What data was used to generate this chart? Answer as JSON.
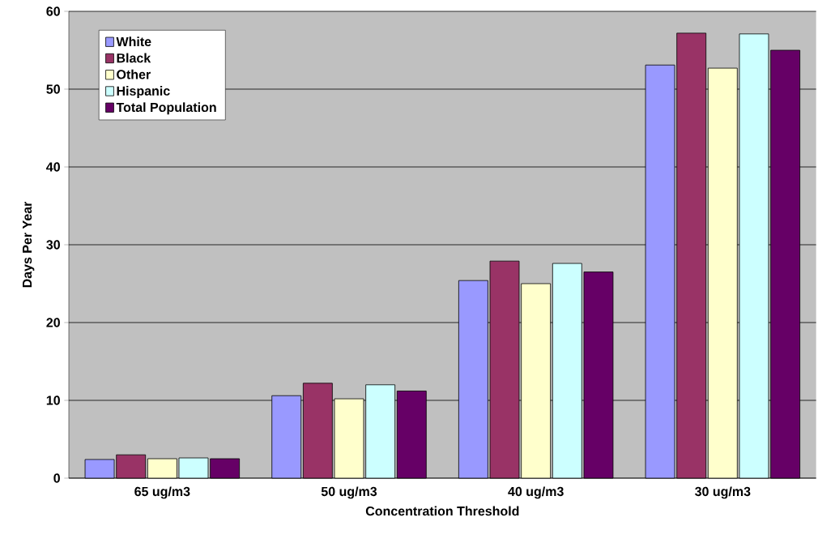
{
  "chart_data": {
    "type": "bar",
    "xlabel": "Concentration Threshold",
    "ylabel": "Days Per Year",
    "categories": [
      "65 ug/m3",
      "50 ug/m3",
      "40 ug/m3",
      "30 ug/m3"
    ],
    "series": [
      {
        "name": "White",
        "color": "#9999ff",
        "values": [
          2.4,
          10.6,
          25.4,
          53.1
        ]
      },
      {
        "name": "Black",
        "color": "#993366",
        "values": [
          3.0,
          12.2,
          27.9,
          57.2
        ]
      },
      {
        "name": "Other",
        "color": "#ffffcc",
        "values": [
          2.5,
          10.2,
          25.0,
          52.7
        ]
      },
      {
        "name": "Hispanic",
        "color": "#ccffff",
        "values": [
          2.6,
          12.0,
          27.6,
          57.1
        ]
      },
      {
        "name": "Total Population",
        "color": "#660066",
        "values": [
          2.5,
          11.2,
          26.5,
          55.0
        ]
      }
    ],
    "ylim": [
      0,
      60
    ],
    "yticks": [
      0,
      10,
      20,
      30,
      40,
      50,
      60
    ],
    "grid": "y",
    "legend": "top left"
  }
}
